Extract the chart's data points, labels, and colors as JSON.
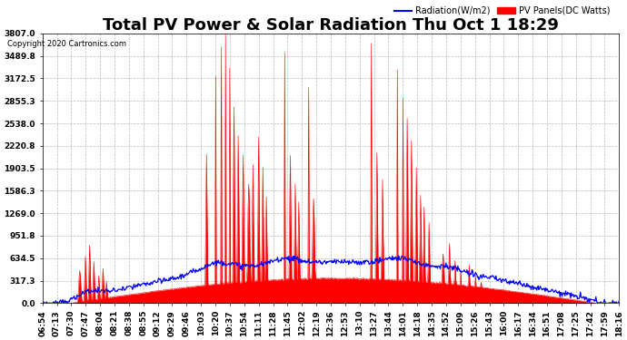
{
  "title": "Total PV Power & Solar Radiation Thu Oct 1 18:29",
  "copyright": "Copyright 2020 Cartronics.com",
  "legend_radiation": "Radiation(W/m2)",
  "legend_pv": "PV Panels(DC Watts)",
  "ymin": 0.0,
  "ymax": 3807.0,
  "yticks": [
    0.0,
    317.3,
    634.5,
    951.8,
    1269.0,
    1586.3,
    1903.5,
    2220.8,
    2538.0,
    2855.3,
    3172.5,
    3489.8,
    3807.0
  ],
  "color_radiation": "#0000ff",
  "color_pv": "#ff0000",
  "background_color": "#ffffff",
  "grid_color": "#aaaaaa",
  "title_fontsize": 13,
  "tick_label_fontsize": 6.5,
  "x_tick_labels": [
    "06:54",
    "07:13",
    "07:30",
    "07:47",
    "08:04",
    "08:21",
    "08:38",
    "08:55",
    "09:12",
    "09:29",
    "09:46",
    "10:03",
    "10:20",
    "10:37",
    "10:54",
    "11:11",
    "11:28",
    "11:45",
    "12:02",
    "12:19",
    "12:36",
    "12:53",
    "13:10",
    "13:27",
    "13:44",
    "14:01",
    "14:18",
    "14:35",
    "14:52",
    "15:09",
    "15:26",
    "15:43",
    "16:00",
    "16:17",
    "16:34",
    "16:51",
    "17:08",
    "17:25",
    "17:42",
    "17:59",
    "18:16"
  ]
}
